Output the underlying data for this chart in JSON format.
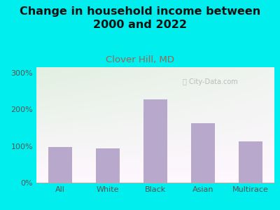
{
  "title": "Change in household income between\n2000 and 2022",
  "subtitle": "Clover Hill, MD",
  "categories": [
    "All",
    "White",
    "Black",
    "Asian",
    "Multirace"
  ],
  "values": [
    97,
    93,
    228,
    163,
    113
  ],
  "bar_color": "#b8a8cc",
  "background_outer": "#00eeee",
  "yticks": [
    0,
    100,
    200,
    300
  ],
  "ytick_labels": [
    "0%",
    "100%",
    "200%",
    "300%"
  ],
  "ylim": [
    0,
    315
  ],
  "title_fontsize": 11.5,
  "subtitle_fontsize": 9.5,
  "subtitle_color": "#996655",
  "tick_color": "#555555",
  "watermark": "City-Data.com",
  "watermark_icon": "ⓘ"
}
